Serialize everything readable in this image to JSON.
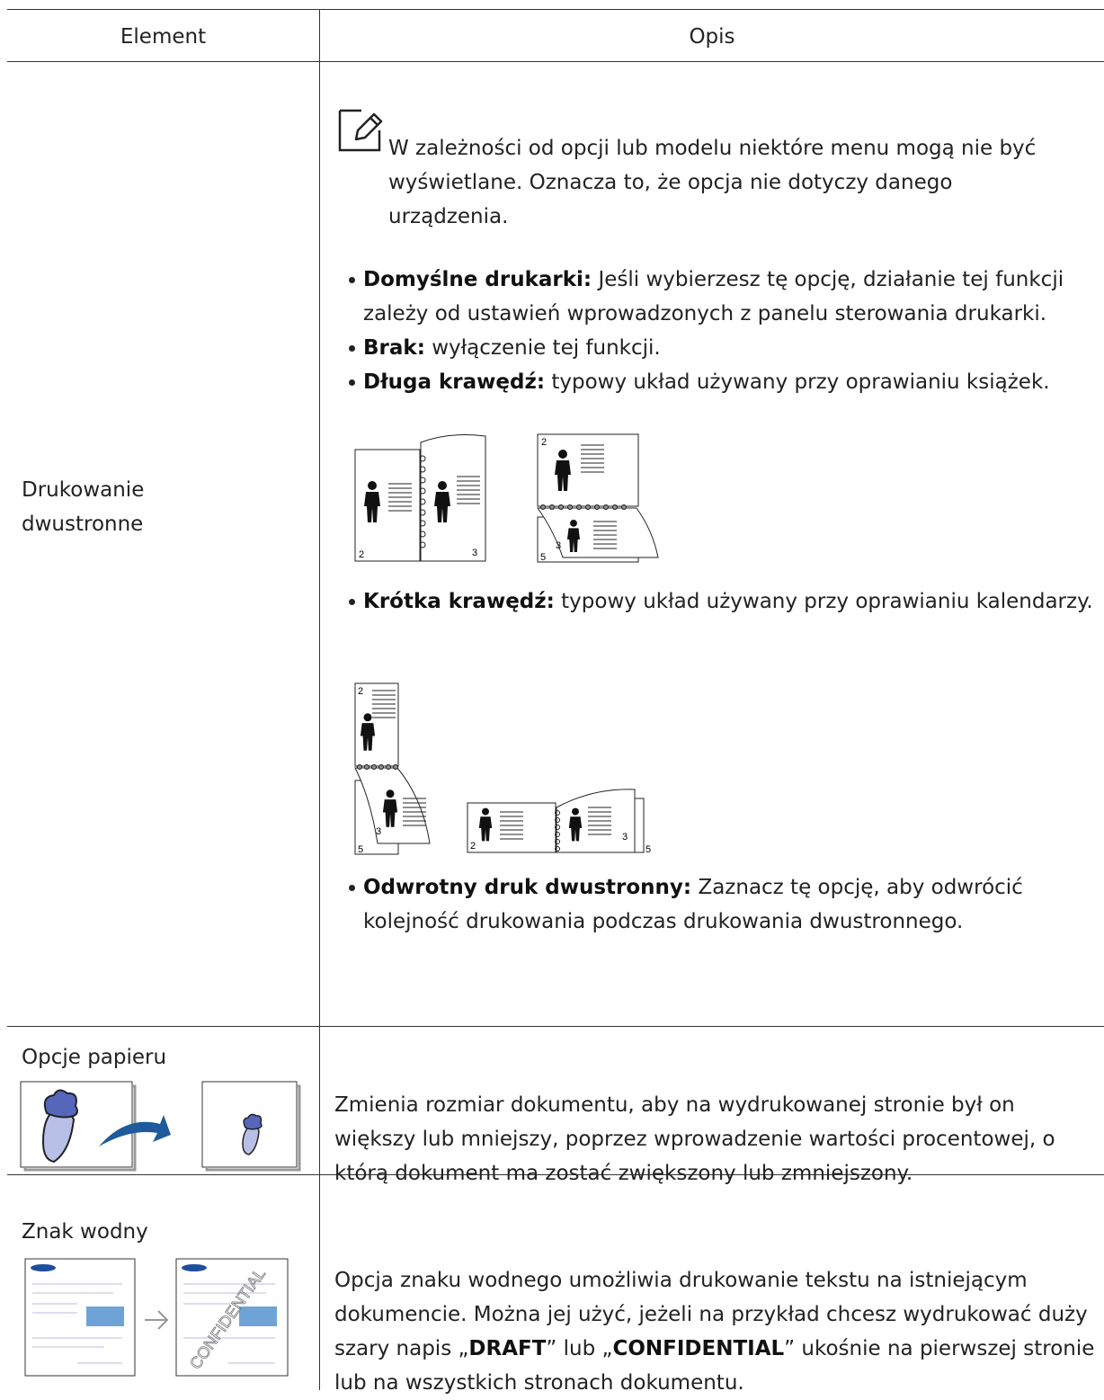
{
  "table": {
    "header": [
      "Element",
      "Opis"
    ],
    "rows": [
      {
        "element": "Drukowanie dwustronne",
        "note": "W zależności od opcji lub modelu niektóre menu mogą nie być wyświetlane. Oznacza to, że opcja nie dotyczy danego urządzenia.",
        "items": [
          {
            "term": "Domyślne drukarki:",
            "text": "Jeśli wybierzesz tę opcję, działanie tej funkcji zależy od ustawień wprowadzonych z panelu sterowania drukarki."
          },
          {
            "term": "Brak:",
            "text": "wyłączenie tej funkcji."
          },
          {
            "term": "Długa krawędź:",
            "text": "typowy układ używany przy oprawianiu książek."
          },
          {
            "term": "Krótka krawędź:",
            "text": "typowy układ używany przy oprawianiu kalendarzy."
          },
          {
            "term": "Odwrotny druk dwustronny:",
            "text": "Zaznacz tę opcję, aby odwrócić kolejność drukowania podczas drukowania dwustronnego."
          }
        ],
        "figures": {
          "long_edge": [
            "2",
            "3",
            "2",
            "3",
            "5"
          ],
          "short_edge": [
            "2",
            "3",
            "5",
            "2",
            "3",
            "5"
          ]
        }
      },
      {
        "element": "Opcje papieru",
        "description": "Zmienia rozmiar dokumentu, aby na wydrukowanej stronie był on większy lub mniejszy, poprzez wprowadzenie wartości procentowej, o którą dokument ma zostać zwiększony lub zmniejszony."
      },
      {
        "element": "Znak wodny",
        "watermark_text": "CONFIDENTIAL",
        "description_parts": [
          "Opcja znaku wodnego umożliwia drukowanie tekstu na istniejącym dokumencie. Można jej użyć, jeżeli na przykład chcesz wydrukować duży szary napis „",
          "DRAFT",
          "” lub „",
          "CONFIDENTIAL",
          "” ukośnie na pierwszej stronie lub na wszystkich stronach dokumentu."
        ]
      }
    ]
  }
}
